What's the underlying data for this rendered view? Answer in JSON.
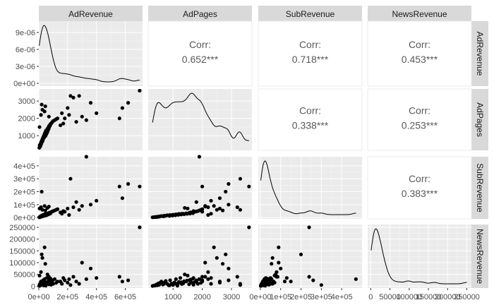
{
  "chart_data": {
    "type": "scatter",
    "variables": [
      "AdRevenue",
      "AdPages",
      "SubRevenue",
      "NewsRevenue"
    ],
    "correlations": [
      {
        "row": "AdRevenue",
        "col": "AdPages",
        "label": "Corr:",
        "value": "0.652***"
      },
      {
        "row": "AdRevenue",
        "col": "SubRevenue",
        "label": "Corr:",
        "value": "0.718***"
      },
      {
        "row": "AdRevenue",
        "col": "NewsRevenue",
        "label": "Corr:",
        "value": "0.453***"
      },
      {
        "row": "AdPages",
        "col": "SubRevenue",
        "label": "Corr:",
        "value": "0.338***"
      },
      {
        "row": "AdPages",
        "col": "NewsRevenue",
        "label": "Corr:",
        "value": "0.253***"
      },
      {
        "row": "SubRevenue",
        "col": "NewsRevenue",
        "label": "Corr:",
        "value": "0.383***"
      }
    ],
    "x_axes": [
      {
        "var": "AdRevenue",
        "range": [
          0,
          720000
        ],
        "ticks": [
          0,
          200000,
          400000,
          600000
        ],
        "labels": [
          "0e+00",
          "2e+05",
          "4e+05",
          "6e+05"
        ]
      },
      {
        "var": "AdPages",
        "range": [
          150,
          3700
        ],
        "ticks": [
          1000,
          2000,
          3000
        ],
        "labels": [
          "1000",
          "2000",
          "3000"
        ]
      },
      {
        "var": "SubRevenue",
        "range": [
          -10000,
          500000
        ],
        "ticks": [
          0,
          100000,
          200000,
          300000,
          400000
        ],
        "labels": [
          "0e+00",
          "1e+05",
          "2e+05",
          "3e+05",
          "4e+05"
        ]
      },
      {
        "var": "NewsRevenue",
        "range": [
          -8000,
          262000
        ],
        "ticks": [
          0,
          50000,
          100000,
          150000,
          200000,
          250000
        ],
        "labels": [
          "0",
          "50000",
          "100000",
          "150000",
          "200000",
          "250000"
        ]
      }
    ],
    "y_axes": [
      {
        "var": "AdRevenue",
        "range": [
          -5e-07,
          1.1e-05
        ],
        "ticks": [
          0,
          3e-06,
          6e-06,
          9e-06
        ],
        "labels": [
          "0e+00",
          "3e-06",
          "6e-06",
          "9e-06"
        ]
      },
      {
        "var": "AdPages",
        "range": [
          150,
          3700
        ],
        "ticks": [
          1000,
          2000,
          3000
        ],
        "labels": [
          "1000",
          "2000",
          "3000"
        ]
      },
      {
        "var": "SubRevenue",
        "range": [
          -10000,
          470000
        ],
        "ticks": [
          0,
          100000,
          200000,
          300000,
          400000
        ],
        "labels": [
          "0e+00",
          "1e+05",
          "2e+05",
          "3e+05",
          "4e+05"
        ]
      },
      {
        "var": "NewsRevenue",
        "range": [
          -8000,
          262000
        ],
        "ticks": [
          0,
          50000,
          100000,
          150000,
          200000,
          250000
        ],
        "labels": [
          "0",
          "50000",
          "100000",
          "150000",
          "200000",
          "250000"
        ]
      }
    ],
    "points": [
      [
        6000,
        450,
        5000,
        8000
      ],
      [
        10000,
        500,
        8000,
        12000
      ],
      [
        15000,
        600,
        12000,
        20000
      ],
      [
        20000,
        700,
        15000,
        15000
      ],
      [
        25000,
        800,
        18000,
        10000
      ],
      [
        30000,
        900,
        20000,
        25000
      ],
      [
        35000,
        1000,
        22000,
        5000
      ],
      [
        40000,
        1100,
        25000,
        30000
      ],
      [
        45000,
        1200,
        28000,
        18000
      ],
      [
        50000,
        1300,
        30000,
        9000
      ],
      [
        8000,
        350,
        4000,
        3000
      ],
      [
        12000,
        420,
        6000,
        6000
      ],
      [
        18000,
        550,
        9000,
        14000
      ],
      [
        22000,
        650,
        11000,
        7000
      ],
      [
        28000,
        750,
        14000,
        22000
      ],
      [
        32000,
        850,
        17000,
        4000
      ],
      [
        38000,
        950,
        19000,
        11000
      ],
      [
        42000,
        1050,
        21000,
        16000
      ],
      [
        48000,
        1150,
        24000,
        2000
      ],
      [
        55000,
        1250,
        27000,
        35000
      ],
      [
        60000,
        1350,
        30000,
        12000
      ],
      [
        65000,
        1450,
        33000,
        20000
      ],
      [
        70000,
        1550,
        36000,
        8000
      ],
      [
        75000,
        1600,
        38000,
        28000
      ],
      [
        80000,
        1650,
        40000,
        15000
      ],
      [
        85000,
        1700,
        42000,
        6000
      ],
      [
        90000,
        1750,
        45000,
        18000
      ],
      [
        95000,
        1800,
        48000,
        25000
      ],
      [
        100000,
        1850,
        50000,
        10000
      ],
      [
        110000,
        1900,
        55000,
        30000
      ],
      [
        120000,
        1950,
        60000,
        14000
      ],
      [
        130000,
        2000,
        65000,
        20000
      ],
      [
        5000,
        1500,
        70000,
        45000
      ],
      [
        15000,
        2200,
        80000,
        60000
      ],
      [
        25000,
        2500,
        60000,
        120000
      ],
      [
        20000,
        2800,
        200000,
        135000
      ],
      [
        40000,
        2400,
        90000,
        165000
      ],
      [
        45000,
        2700,
        55000,
        95000
      ],
      [
        60000,
        1400,
        75000,
        50000
      ],
      [
        70000,
        2100,
        85000,
        40000
      ],
      [
        150000,
        1600,
        40000,
        20000
      ],
      [
        160000,
        2300,
        30000,
        10000
      ],
      [
        170000,
        1700,
        50000,
        35000
      ],
      [
        180000,
        2000,
        45000,
        25000
      ],
      [
        200000,
        2600,
        70000,
        15000
      ],
      [
        210000,
        2200,
        20000,
        30000
      ],
      [
        220000,
        3300,
        300000,
        5000
      ],
      [
        240000,
        3200,
        80000,
        40000
      ],
      [
        260000,
        1800,
        120000,
        20000
      ],
      [
        280000,
        3300,
        60000,
        10000
      ],
      [
        300000,
        2100,
        90000,
        100000
      ],
      [
        330000,
        1900,
        470000,
        30000
      ],
      [
        360000,
        2900,
        100000,
        75000
      ],
      [
        400000,
        2300,
        130000,
        35000
      ],
      [
        560000,
        2000,
        240000,
        40000
      ],
      [
        580000,
        2600,
        150000,
        20000
      ],
      [
        620000,
        2900,
        260000,
        25000
      ],
      [
        700000,
        3600,
        240000,
        250000
      ],
      [
        3000,
        300,
        2000,
        1000
      ],
      [
        7000,
        380,
        3000,
        2500
      ],
      [
        11000,
        460,
        4000,
        4000
      ],
      [
        16000,
        520,
        7000,
        5500
      ],
      [
        26000,
        680,
        10000,
        9000
      ],
      [
        36000,
        880,
        13000,
        3500
      ],
      [
        46000,
        980,
        16000,
        7500
      ],
      [
        52000,
        1080,
        18000,
        11000
      ],
      [
        58000,
        1180,
        21000,
        13000
      ],
      [
        62000,
        1280,
        24000,
        17000
      ],
      [
        68000,
        1380,
        26000,
        21000
      ],
      [
        72000,
        1480,
        29000,
        24000
      ],
      [
        78000,
        1580,
        31000,
        27000
      ],
      [
        82000,
        1680,
        34000,
        32000
      ]
    ]
  }
}
